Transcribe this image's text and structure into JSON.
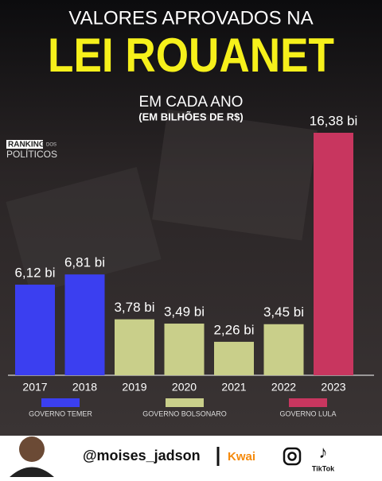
{
  "chart_data": {
    "type": "bar",
    "title": "VALORES APROVADOS NA",
    "headline": "LEI ROUANET",
    "subtitle": "EM CADA ANO",
    "unit_note": "(EM BILHÕES DE R$)",
    "categories": [
      "2017",
      "2018",
      "2019",
      "2020",
      "2021",
      "2022",
      "2023"
    ],
    "values": [
      6.12,
      6.81,
      3.78,
      3.49,
      2.26,
      3.45,
      16.38
    ],
    "value_labels": [
      "6,12 bi",
      "6,81 bi",
      "3,78 bi",
      "3,49 bi",
      "2,26 bi",
      "3,45 bi",
      "16,38 bi"
    ],
    "colors": [
      "#3b3ff0",
      "#3b3ff0",
      "#c9cf8a",
      "#c9cf8a",
      "#c9cf8a",
      "#c9cf8a",
      "#c8365f"
    ],
    "legend": [
      {
        "name": "GOVERNO TEMER",
        "color": "#3b3ff0"
      },
      {
        "name": "GOVERNO BOLSONARO",
        "color": "#c9cf8a"
      },
      {
        "name": "GOVERNO LULA",
        "color": "#c8365f"
      }
    ]
  },
  "logo": {
    "line1": "RANKING",
    "line2": "DOS",
    "line3": "POLÍTICOS"
  },
  "footer": {
    "handle": "@moises_jadson",
    "kwai": "Kwai",
    "tiktok": "TikTok"
  }
}
